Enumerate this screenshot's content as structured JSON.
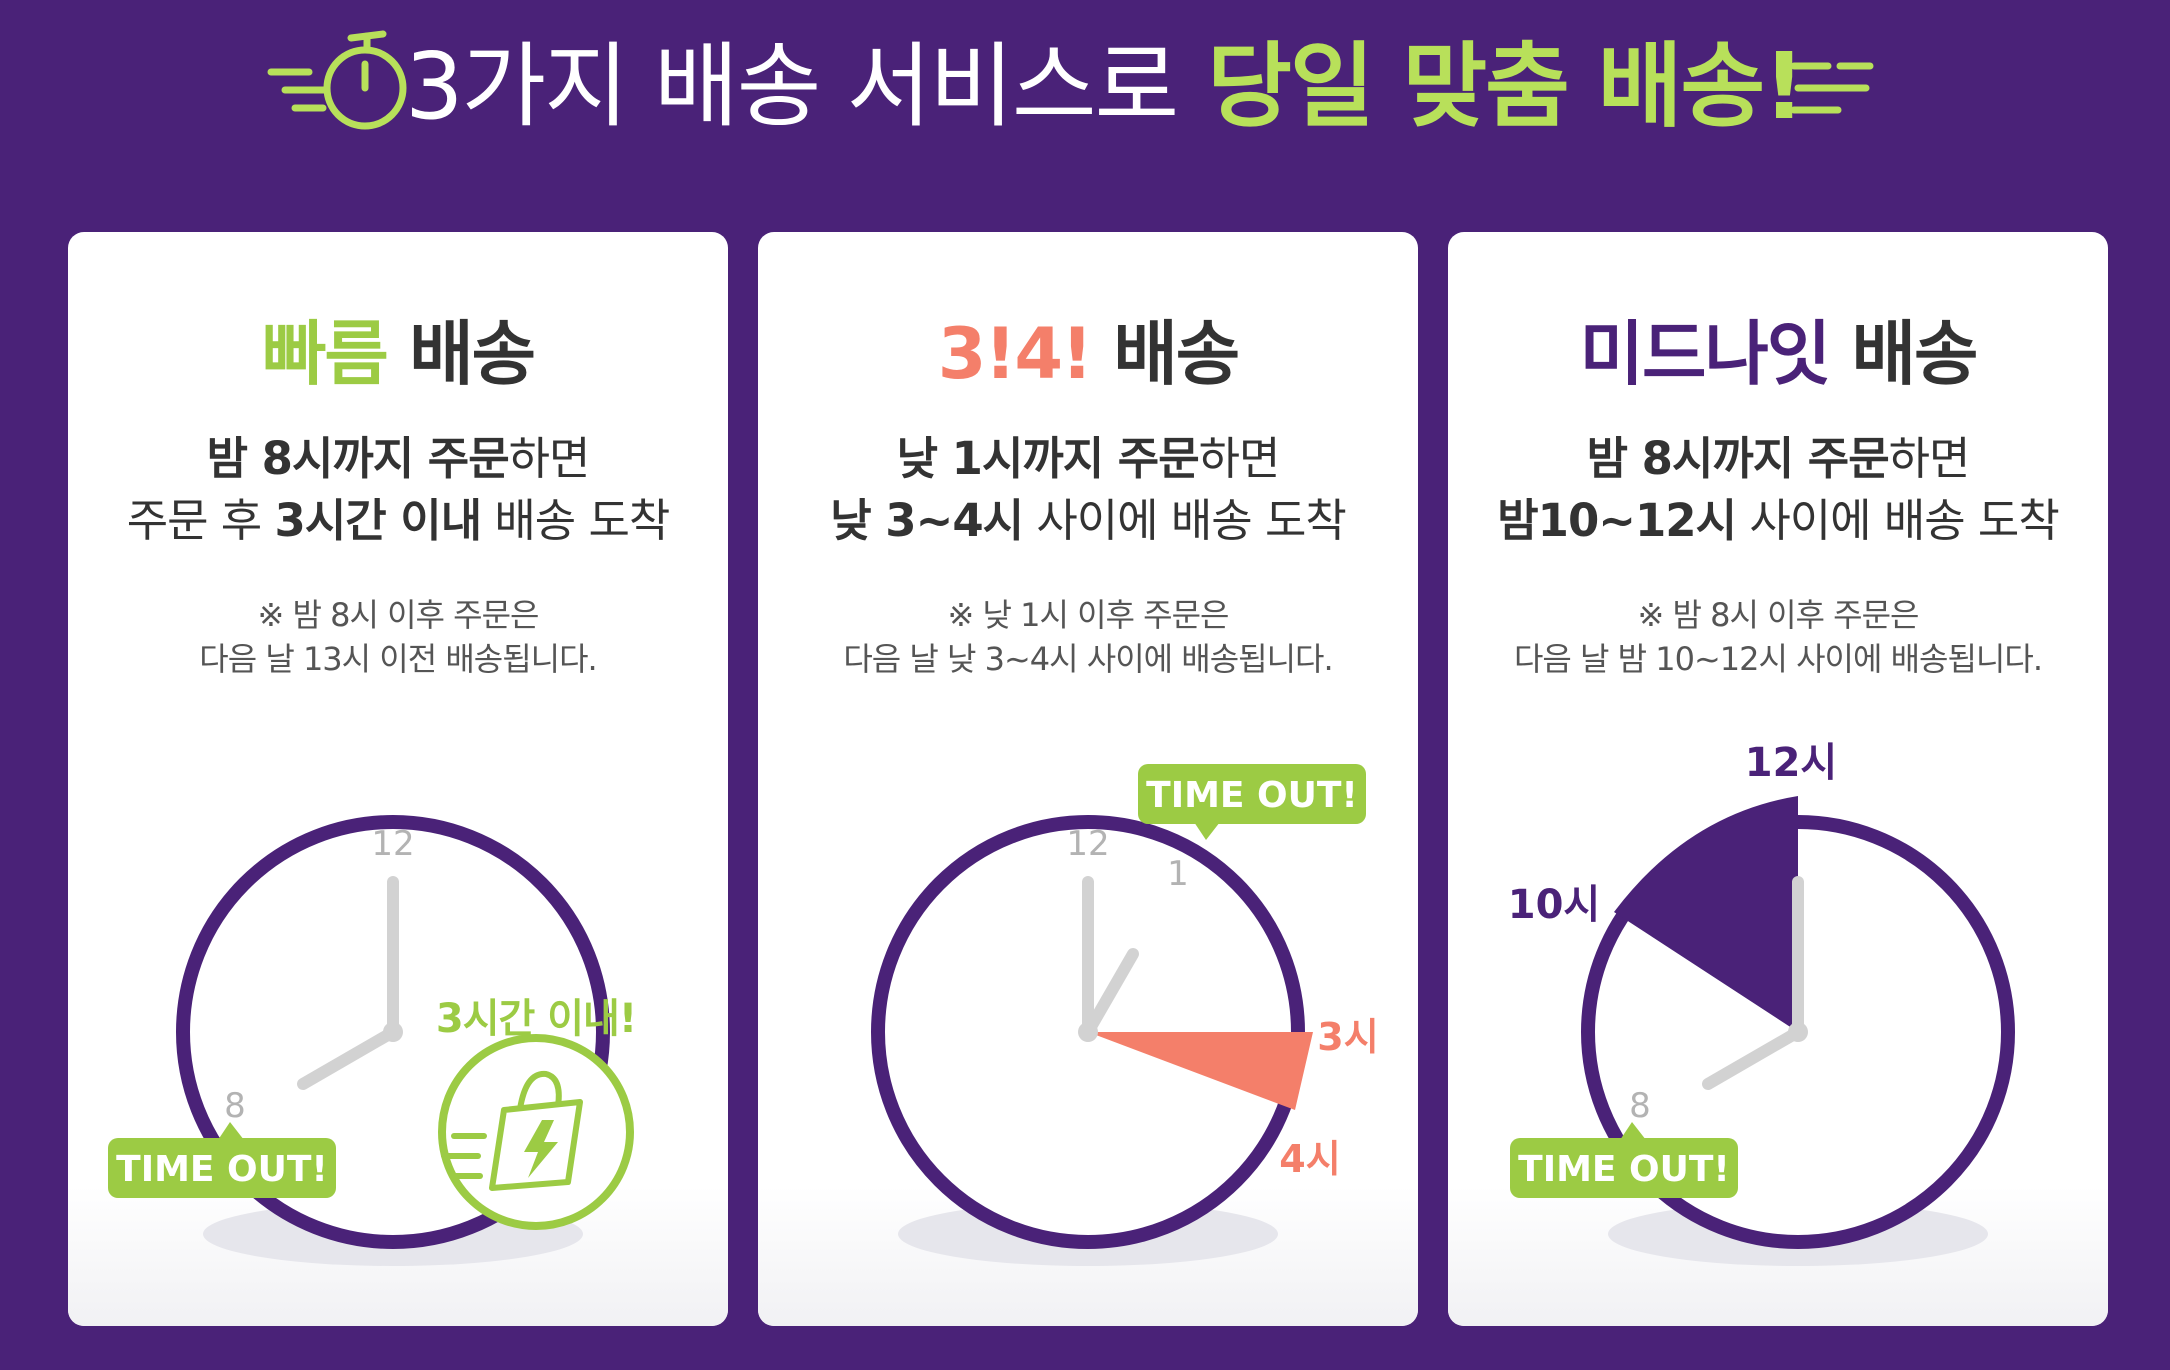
{
  "header": {
    "title_part1": "3가지 배송 서비스로",
    "title_part2": "당일 맞춤 배송!",
    "accent_color": "#b8e05a",
    "background_color": "#4a2278",
    "left_icon": "stopwatch-icon"
  },
  "cards": [
    {
      "title_colored": "빠름",
      "title_rest": "배송",
      "line1_bold": "밤 8시까지 주문",
      "line1_rest": "하면",
      "line2_pre": "주문 후",
      "line2_bold": "3시간 이내",
      "line2_post": "배송 도착",
      "note1": "※ 밤 8시 이후 주문은",
      "note2": "다음 날 13시 이전 배송됩니다.",
      "clock_label_12": "12",
      "clock_label_8": "8",
      "badge": "TIME OUT!",
      "within_label": "3시간 이내!",
      "bag_icon": "shopping-bag-lightning-icon",
      "color": "#9ccb44"
    },
    {
      "title_colored": "3!4!",
      "title_rest": "배송",
      "line1_bold": "낮 1시까지 주문",
      "line1_rest": "하면",
      "line2_pre": "",
      "line2_bold": "낮 3~4시",
      "line2_post": "사이에 배송 도착",
      "note1": "※ 낮 1시 이후 주문은",
      "note2": "다음 날 낮 3~4시 사이에 배송됩니다.",
      "clock_label_12": "12",
      "clock_label_1": "1",
      "badge": "TIME OUT!",
      "label_3": "3시",
      "label_4": "4시",
      "color": "#f47f6a"
    },
    {
      "title_colored": "미드나잇",
      "title_rest": "배송",
      "line1_bold": "밤 8시까지 주문",
      "line1_rest": "하면",
      "line2_pre": "",
      "line2_bold": "밤10~12시",
      "line2_post": "사이에 배송 도착",
      "note1": "※ 밤 8시 이후 주문은",
      "note2": "다음 날 밤 10~12시 사이에 배송됩니다.",
      "clock_label_8": "8",
      "badge": "TIME OUT!",
      "label_10": "10시",
      "label_12": "12시",
      "color": "#4a2278"
    }
  ]
}
